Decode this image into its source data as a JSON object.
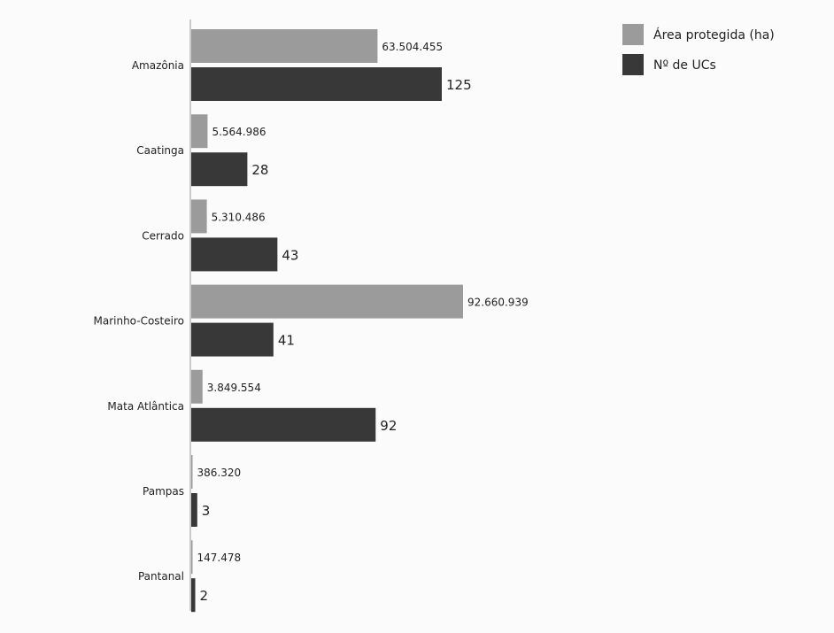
{
  "chart_data": {
    "type": "bar",
    "orientation": "horizontal",
    "categories": [
      "Amazônia",
      "Caatinga",
      "Cerrado",
      "Marinho-Costeiro",
      "Mata Atlântica",
      "Pampas",
      "Pantanal"
    ],
    "series": [
      {
        "name": "Área protegida (ha)",
        "color": "#9b9b9b",
        "values": [
          63504455,
          5564986,
          5310486,
          92660939,
          3849554,
          386320,
          147478
        ],
        "labels": [
          "63.504.455",
          "5.564.986",
          "5.310.486",
          "92.660.939",
          "3.849.554",
          "386.320",
          "147.478"
        ],
        "xlim": [
          0,
          92660939
        ]
      },
      {
        "name": "Nº de UCs",
        "color": "#383838",
        "values": [
          125,
          28,
          43,
          41,
          92,
          3,
          2
        ],
        "labels": [
          "125",
          "28",
          "43",
          "41",
          "92",
          "3",
          "2"
        ],
        "xlim": [
          0,
          125
        ]
      }
    ],
    "legend_position": "top-right",
    "grid": false
  }
}
